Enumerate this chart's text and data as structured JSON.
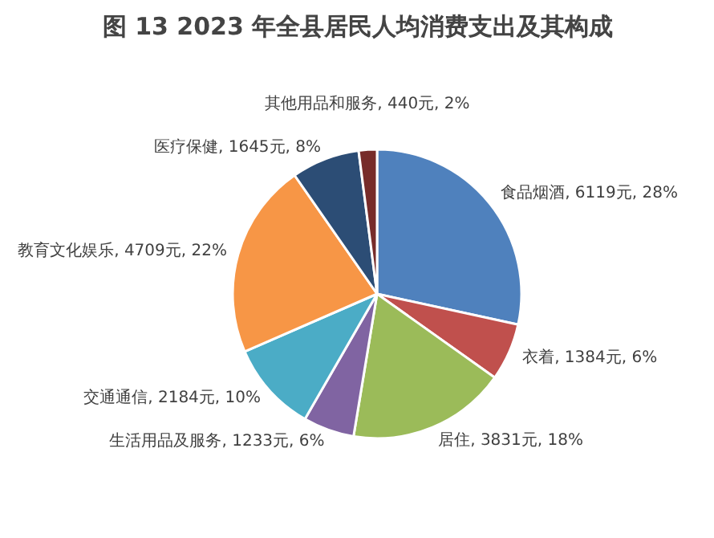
{
  "chart_data": {
    "type": "pie",
    "title": "图 13 2023 年全县居民人均消费支出及其构成",
    "values": [
      6119,
      1384,
      3831,
      1233,
      2184,
      4709,
      1645,
      440
    ],
    "value_labels": [
      "食品烟酒, 6119元, 28%",
      "衣着, 1384元, 6%",
      "居住, 3831元, 18%",
      "生活用品及服务, 1233元, 6%",
      "交通通信, 2184元, 10%",
      "教育文化娱乐, 4709元, 22%",
      "医疗保健, 1645元, 8%",
      "其他用品和服务, 440元, 2%"
    ],
    "colors": [
      "#4f81bd",
      "#c0504d",
      "#9bbb59",
      "#8064a2",
      "#4bacc6",
      "#f79646",
      "#2c4d75",
      "#772c2a"
    ]
  }
}
